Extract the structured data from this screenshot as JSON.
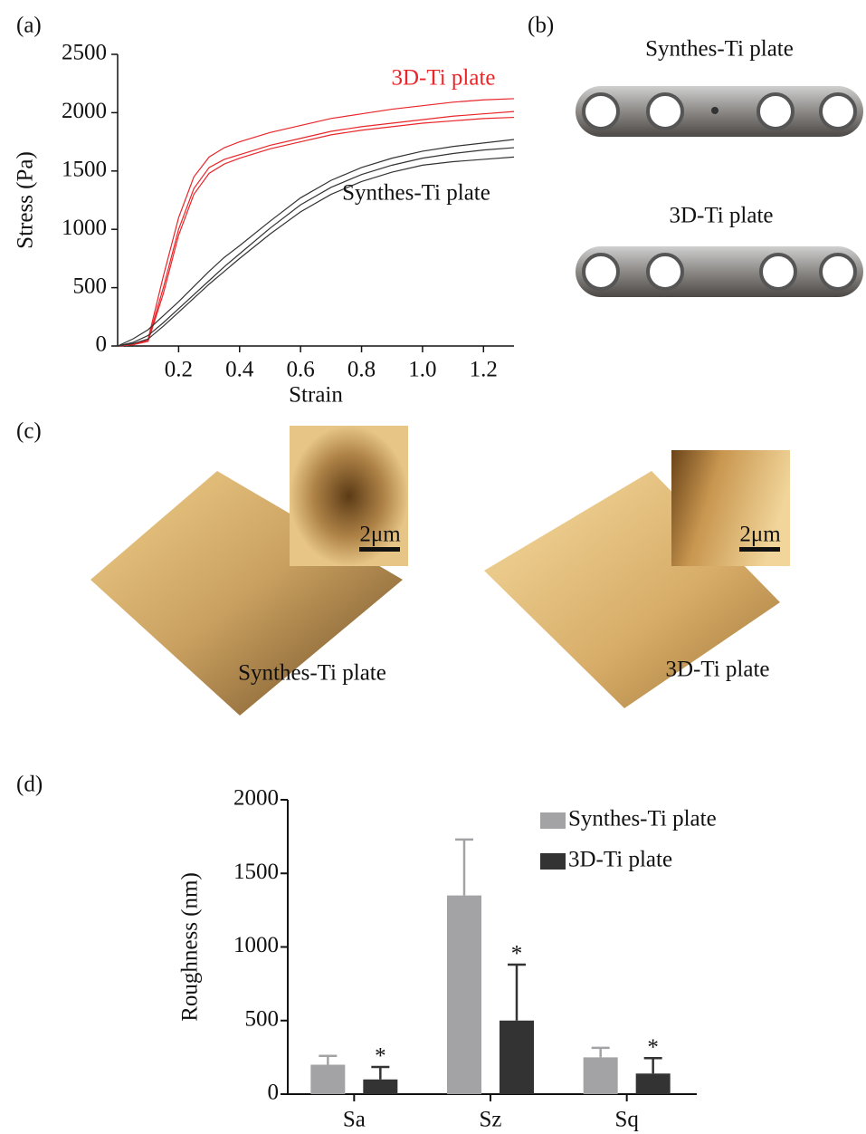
{
  "chart_data": [
    {
      "type": "line",
      "xlabel": "Strain",
      "ylabel": "Stress (Pa)",
      "x": [
        0,
        0.05,
        0.1,
        0.15,
        0.2,
        0.25,
        0.3,
        0.35,
        0.4,
        0.5,
        0.6,
        0.7,
        0.8,
        0.9,
        1.0,
        1.1,
        1.2,
        1.3
      ],
      "series": [
        {
          "color": "#e8262a",
          "values": [
            0,
            10,
            60,
            600,
            1100,
            1450,
            1620,
            1700,
            1750,
            1830,
            1890,
            1950,
            1990,
            2030,
            2060,
            2090,
            2110,
            2120
          ]
        },
        {
          "color": "#e8262a",
          "values": [
            0,
            10,
            50,
            500,
            1000,
            1350,
            1530,
            1600,
            1640,
            1720,
            1780,
            1840,
            1880,
            1910,
            1940,
            1970,
            1990,
            2010
          ]
        },
        {
          "color": "#e8262a",
          "values": [
            0,
            10,
            40,
            450,
            950,
            1300,
            1480,
            1560,
            1610,
            1690,
            1750,
            1810,
            1850,
            1880,
            1910,
            1930,
            1950,
            1960
          ]
        },
        {
          "color": "#333333",
          "values": [
            0,
            60,
            140,
            260,
            380,
            510,
            640,
            760,
            860,
            1070,
            1270,
            1420,
            1530,
            1610,
            1670,
            1710,
            1740,
            1770
          ]
        },
        {
          "color": "#333333",
          "values": [
            0,
            30,
            90,
            200,
            320,
            440,
            560,
            680,
            790,
            1010,
            1210,
            1360,
            1470,
            1550,
            1610,
            1650,
            1680,
            1700
          ]
        },
        {
          "color": "#333333",
          "values": [
            0,
            20,
            60,
            170,
            290,
            410,
            530,
            640,
            750,
            960,
            1150,
            1300,
            1410,
            1490,
            1550,
            1580,
            1600,
            1620
          ]
        }
      ],
      "annotations": [
        {
          "text": "3D-Ti plate",
          "color": "#e8262a"
        },
        {
          "text": "Synthes-Ti plate",
          "color": "#111111"
        }
      ],
      "xlim": [
        0,
        1.3
      ],
      "xticks": [
        0.2,
        0.4,
        0.6,
        0.8,
        {
          "value": 1,
          "label": "1.0"
        },
        1.2
      ],
      "ylim": [
        0,
        2500
      ],
      "yticks": [
        0,
        500,
        1000,
        1500,
        2000,
        2500
      ]
    },
    {
      "type": "bar",
      "ylabel": "Roughness (nm)",
      "categories": [
        "Sa",
        "Sz",
        "Sq"
      ],
      "series": [
        {
          "name": "Synthes-Ti plate",
          "color": "#a3a3a6",
          "values": [
            200,
            1350,
            250
          ],
          "errors": [
            60,
            380,
            65
          ]
        },
        {
          "name": "3D-Ti plate",
          "color": "#333333",
          "values": [
            100,
            500,
            140
          ],
          "errors": [
            85,
            380,
            105
          ],
          "significance": [
            "*",
            "*",
            "*"
          ]
        }
      ],
      "ylim": [
        0,
        2000
      ],
      "yticks": [
        0,
        500,
        1000,
        1500,
        2000
      ]
    }
  ],
  "panel_labels": [
    "(a)",
    "(b)",
    "(c)",
    "(d)"
  ],
  "photos": {
    "labels": [
      "Synthes-Ti plate",
      "3D-Ti plate"
    ]
  },
  "afm": {
    "labels": [
      "Synthes-Ti plate",
      "3D-Ti plate"
    ],
    "scale_bar": "2μm"
  }
}
